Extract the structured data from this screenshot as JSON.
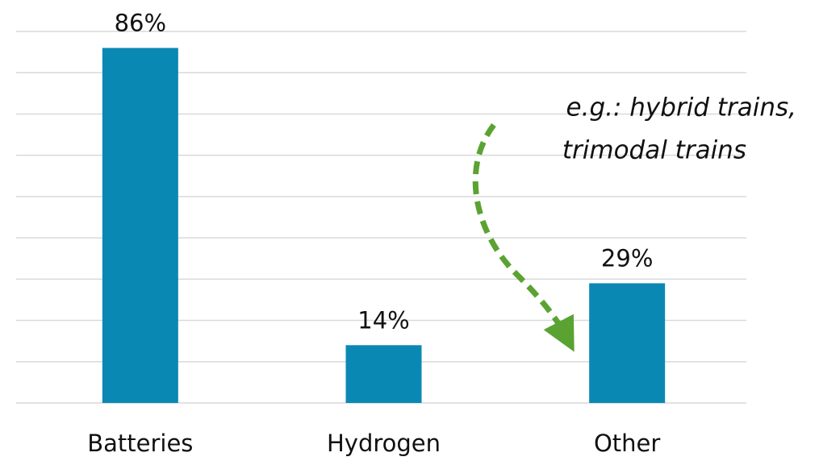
{
  "chart_data": {
    "type": "bar",
    "categories": [
      "Batteries",
      "Hydrogen",
      "Other"
    ],
    "values": [
      86,
      14,
      29
    ],
    "value_labels": [
      "86%",
      "14%",
      "29%"
    ],
    "color": "#0a88b4",
    "ylim": [
      0,
      90
    ],
    "yticks": [
      0,
      10,
      20,
      30,
      40,
      50,
      60,
      70,
      80,
      90
    ],
    "grid": true,
    "annotation": [
      "e.g.: hybrid trains,",
      "trimodal trains"
    ]
  }
}
